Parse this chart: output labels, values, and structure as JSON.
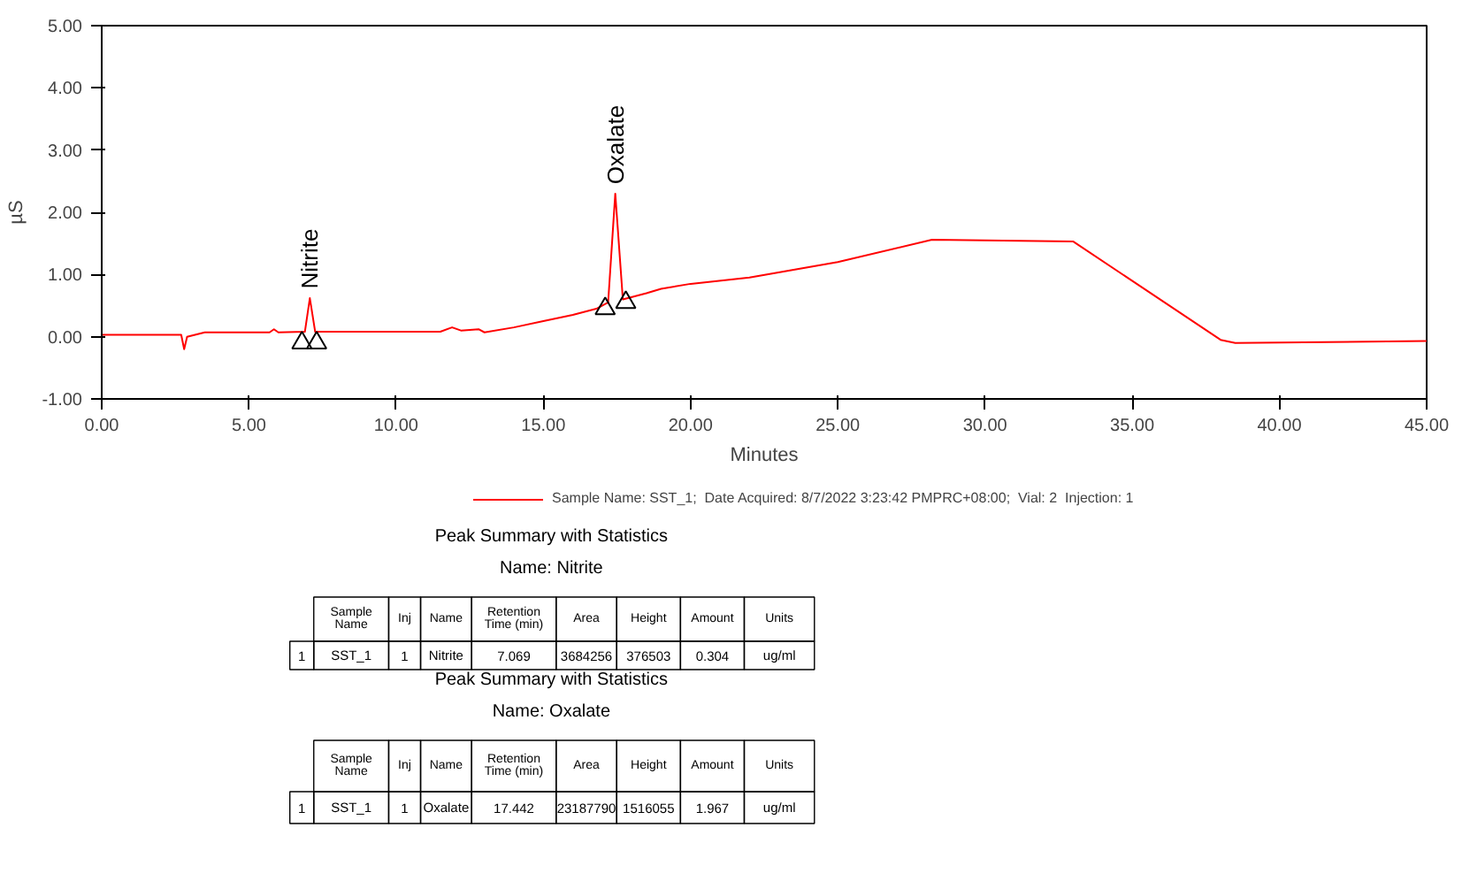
{
  "chart_data": {
    "type": "line",
    "xlabel": "Minutes",
    "ylabel": "µS",
    "xlim": [
      0,
      45
    ],
    "ylim": [
      -1,
      5
    ],
    "xticks": [
      {
        "value": 0,
        "label": "0.00"
      },
      {
        "value": 5,
        "label": "5.00"
      },
      {
        "value": 10,
        "label": "10.00"
      },
      {
        "value": 15,
        "label": "15.00"
      },
      {
        "value": 20,
        "label": "20.00"
      },
      {
        "value": 25,
        "label": "25.00"
      },
      {
        "value": 30,
        "label": "30.00"
      },
      {
        "value": 35,
        "label": "35.00"
      },
      {
        "value": 40,
        "label": "40.00"
      },
      {
        "value": 45,
        "label": "45.00"
      }
    ],
    "yticks": [
      {
        "value": -1,
        "label": "-1.00"
      },
      {
        "value": 0,
        "label": "0.00"
      },
      {
        "value": 1,
        "label": "1.00"
      },
      {
        "value": 2,
        "label": "2.00"
      },
      {
        "value": 3,
        "label": "3.00"
      },
      {
        "value": 4,
        "label": "4.00"
      },
      {
        "value": 5,
        "label": "5.00"
      }
    ],
    "legend": "bottom",
    "series": [
      {
        "name": "Sample Name: SST_1;  Date Acquired: 8/7/2022 3:23:42 PMPRC+08:00;  Vial: 2  Injection: 1",
        "color": "#ff0000",
        "x": [
          0,
          2.7,
          2.8,
          2.9,
          3.5,
          5.7,
          5.85,
          6.0,
          6.9,
          7.069,
          7.25,
          11.5,
          11.9,
          12.2,
          12.8,
          13.0,
          14.0,
          15.0,
          16.0,
          16.8,
          17.2,
          17.442,
          17.7,
          18.5,
          19.0,
          20.0,
          22.0,
          25.0,
          28.2,
          33.0,
          38.0,
          38.5,
          45.0
        ],
        "values": [
          0.03,
          0.03,
          -0.2,
          0.0,
          0.07,
          0.07,
          0.12,
          0.07,
          0.08,
          0.62,
          0.08,
          0.08,
          0.15,
          0.1,
          0.12,
          0.07,
          0.15,
          0.25,
          0.35,
          0.45,
          0.55,
          2.3,
          0.6,
          0.7,
          0.77,
          0.85,
          0.95,
          1.2,
          1.56,
          1.53,
          -0.05,
          -0.1,
          -0.07
        ]
      },
      {
        "color": "#000000",
        "type": "scatter",
        "marker": "triangle",
        "x": [
          6.8,
          7.3,
          17.1,
          17.8
        ],
        "values": [
          -0.1,
          -0.1,
          0.45,
          0.55
        ]
      }
    ],
    "annotations": [
      {
        "text": "Nitrite",
        "x": 7.069,
        "y": 0.62
      },
      {
        "text": "Oxalate",
        "x": 17.442,
        "y": 2.3
      },
      "Peak Summary with Statistics",
      "Name: Nitrite",
      "Sample\nName",
      "Inj",
      "Name",
      "Retention\nTime (min)",
      "Area",
      "Height",
      "Amount",
      "Units",
      "1",
      "SST_1",
      "1",
      "Nitrite",
      "7.069",
      "3684256",
      "376503",
      "0.304",
      "ug/ml",
      "Peak Summary with Statistics",
      "Name: Oxalate",
      "Sample\nName",
      "Inj",
      "Name",
      "Retention\nTime (min)",
      "Area",
      "Height",
      "Amount",
      "Units",
      "1",
      "SST_1",
      "1",
      "Oxalate",
      "17.442",
      "23187790",
      "1516055",
      "1.967",
      "ug/ml"
    ]
  }
}
